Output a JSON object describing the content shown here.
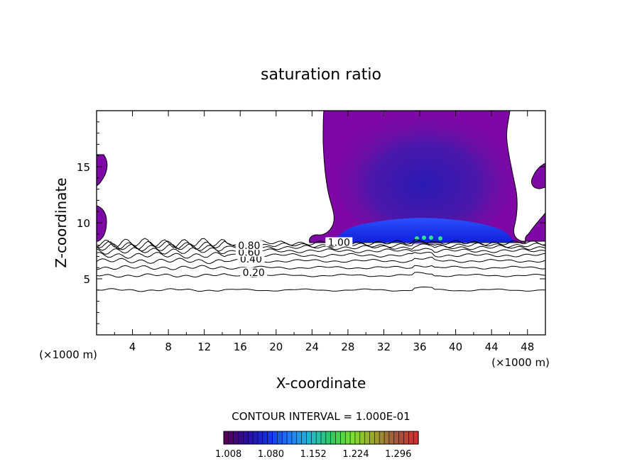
{
  "chart_data": {
    "type": "contour",
    "title": "saturation ratio",
    "xlabel": "X-coordinate",
    "ylabel": "Z-coordinate",
    "x_unit": "(×1000 m)",
    "z_unit": "(×1000 m)",
    "xlim": [
      0,
      50
    ],
    "ylim": [
      0,
      20
    ],
    "xticks": [
      "4",
      "8",
      "12",
      "16",
      "20",
      "24",
      "28",
      "32",
      "36",
      "40",
      "44",
      "48"
    ],
    "yticks": [
      "5",
      "10",
      "15"
    ],
    "contour_interval_text": "CONTOUR INTERVAL = 1.000E-01",
    "contour_labels": [
      {
        "label": "0.20",
        "x": 17.5,
        "z": 5.5
      },
      {
        "label": "0.40",
        "x": 17.2,
        "z": 6.7
      },
      {
        "label": "0.60",
        "x": 17.0,
        "z": 7.3
      },
      {
        "label": "0.80",
        "x": 17.0,
        "z": 7.9
      },
      {
        "label": "1.00",
        "x": 27.0,
        "z": 8.2
      }
    ],
    "contour_lines_z": [
      4.0,
      5.3,
      6.0,
      6.6,
      7.1,
      7.5,
      7.8,
      8.0,
      8.2
    ],
    "colorbar": {
      "range": [
        1.0,
        1.33
      ],
      "ticks": [
        "1.008",
        "1.080",
        "1.152",
        "1.224",
        "1.296"
      ],
      "colors": [
        "#55005a",
        "#2a0ea0",
        "#1530e6",
        "#1f7aff",
        "#22b8cc",
        "#2ecc60",
        "#7be02b",
        "#9da42a",
        "#a05a40",
        "#d03030"
      ]
    },
    "regions": [
      {
        "name": "supersaturated-cloud",
        "x_range": [
          24,
          50
        ],
        "z_range": [
          8.3,
          20
        ],
        "value_min": 1.0,
        "value_max": 1.25
      },
      {
        "name": "left-edge-cloud",
        "x_range": [
          0,
          1.2
        ],
        "z_range": [
          9,
          16
        ],
        "value_min": 1.0,
        "value_max": 1.02
      }
    ]
  }
}
